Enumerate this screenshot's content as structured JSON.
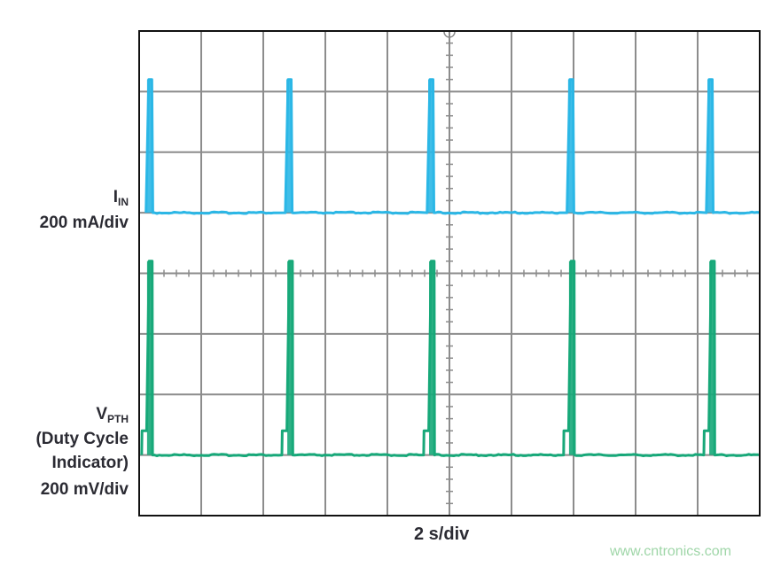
{
  "chart_data": {
    "type": "line",
    "title": "",
    "xlabel": "2 s/div",
    "x_unit": "s",
    "xlim": [
      0,
      20
    ],
    "divisions": {
      "horizontal": 10,
      "vertical": 8
    },
    "grid": true,
    "series": [
      {
        "name": "I",
        "name_subscript": "IN",
        "scale_label": "200 mA/div",
        "unit": "mA",
        "color": "#2bb7e6",
        "baseline": 0,
        "pulses": [
          {
            "t": 0.34,
            "peak": 440
          },
          {
            "t": 4.83,
            "peak": 440
          },
          {
            "t": 9.4,
            "peak": 440
          },
          {
            "t": 13.91,
            "peak": 440
          },
          {
            "t": 18.4,
            "peak": 440
          }
        ]
      },
      {
        "name": "V",
        "name_subscript": "PTH",
        "description_lines": [
          "(Duty Cycle",
          "Indicator)"
        ],
        "scale_label": "200 mV/div",
        "unit": "mV",
        "color": "#17a879",
        "baseline": 0,
        "pre_step": 80,
        "pulses": [
          {
            "t": 0.34,
            "peak": 640
          },
          {
            "t": 4.86,
            "peak": 640
          },
          {
            "t": 9.43,
            "peak": 640
          },
          {
            "t": 13.94,
            "peak": 640
          },
          {
            "t": 18.46,
            "peak": 640
          }
        ]
      }
    ]
  },
  "watermark": "www.cntronics.com"
}
